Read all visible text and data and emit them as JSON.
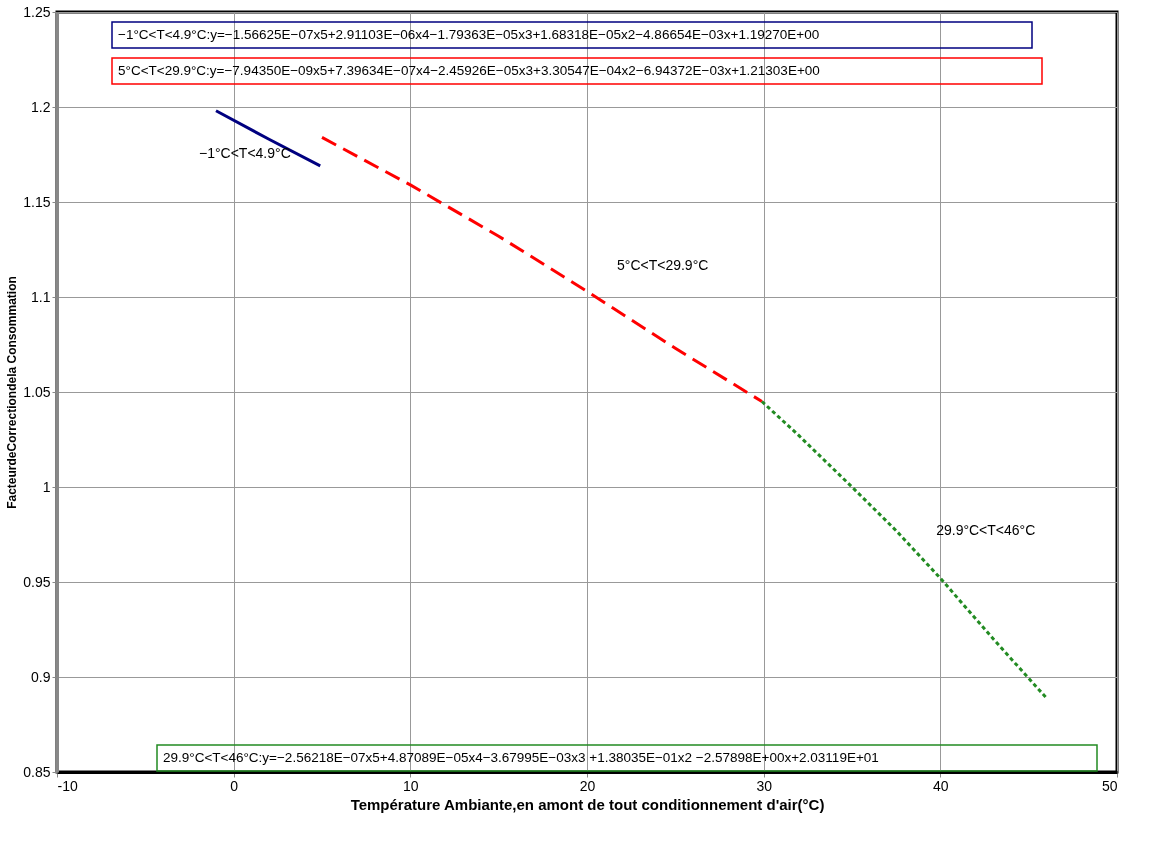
{
  "chart_data": {
    "type": "line",
    "xlabel": "Température Ambiante,en amont de tout conditionnement d'air(°C)",
    "ylabel": "FacteurdeCorrectiondela Consommation",
    "xlim": [
      -10,
      50
    ],
    "xticks": [
      -10,
      0,
      10,
      20,
      30,
      40,
      50
    ],
    "ylim": [
      0.85,
      1.25
    ],
    "yticks": [
      0.85,
      0.9,
      0.95,
      1,
      1.05,
      1.1,
      1.15,
      1.2,
      1.25
    ],
    "grid": true,
    "marker": "none",
    "series": [
      {
        "name": "−1°C<T<4.9°C",
        "color": "#000080",
        "line_style": "solid",
        "x": [
          -1,
          2,
          4.9
        ],
        "values": [
          1.198,
          1.183,
          1.169
        ]
      },
      {
        "name": "5°C<T<29.9°C",
        "color": "#ff0000",
        "line_style": "dashed",
        "x": [
          5,
          10,
          15,
          20,
          25,
          29.9
        ],
        "values": [
          1.184,
          1.159,
          1.132,
          1.103,
          1.073,
          1.045
        ]
      },
      {
        "name": "29.9°C<T<46°C",
        "color": "#228b22",
        "line_style": "dotted",
        "x": [
          29.9,
          32,
          35,
          37.5,
          40,
          43,
          46
        ],
        "values": [
          1.045,
          1.027,
          1.0,
          0.977,
          0.952,
          0.92,
          0.889
        ]
      }
    ],
    "annotations": [
      "−1°C<T<4.9°C:y=−1.56625E−07x5+2.91103E−06x4−1.79363E−05x3+1.68318E−05x2−4.86654E−03x+1.19270E+00",
      "5°C<T<29.9°C:y=−7.94350E−09x5+7.39634E−07x4−2.45926E−05x3+3.30547E−04x2−6.94372E−03x+1.21303E+00",
      "29.9°C<T<46°C:y=−2.56218E−07x5+4.87089E−05x4−3.67995E−03x3 +1.38035E−01x2 −2.57898E+00x+2.03119E+01"
    ]
  }
}
